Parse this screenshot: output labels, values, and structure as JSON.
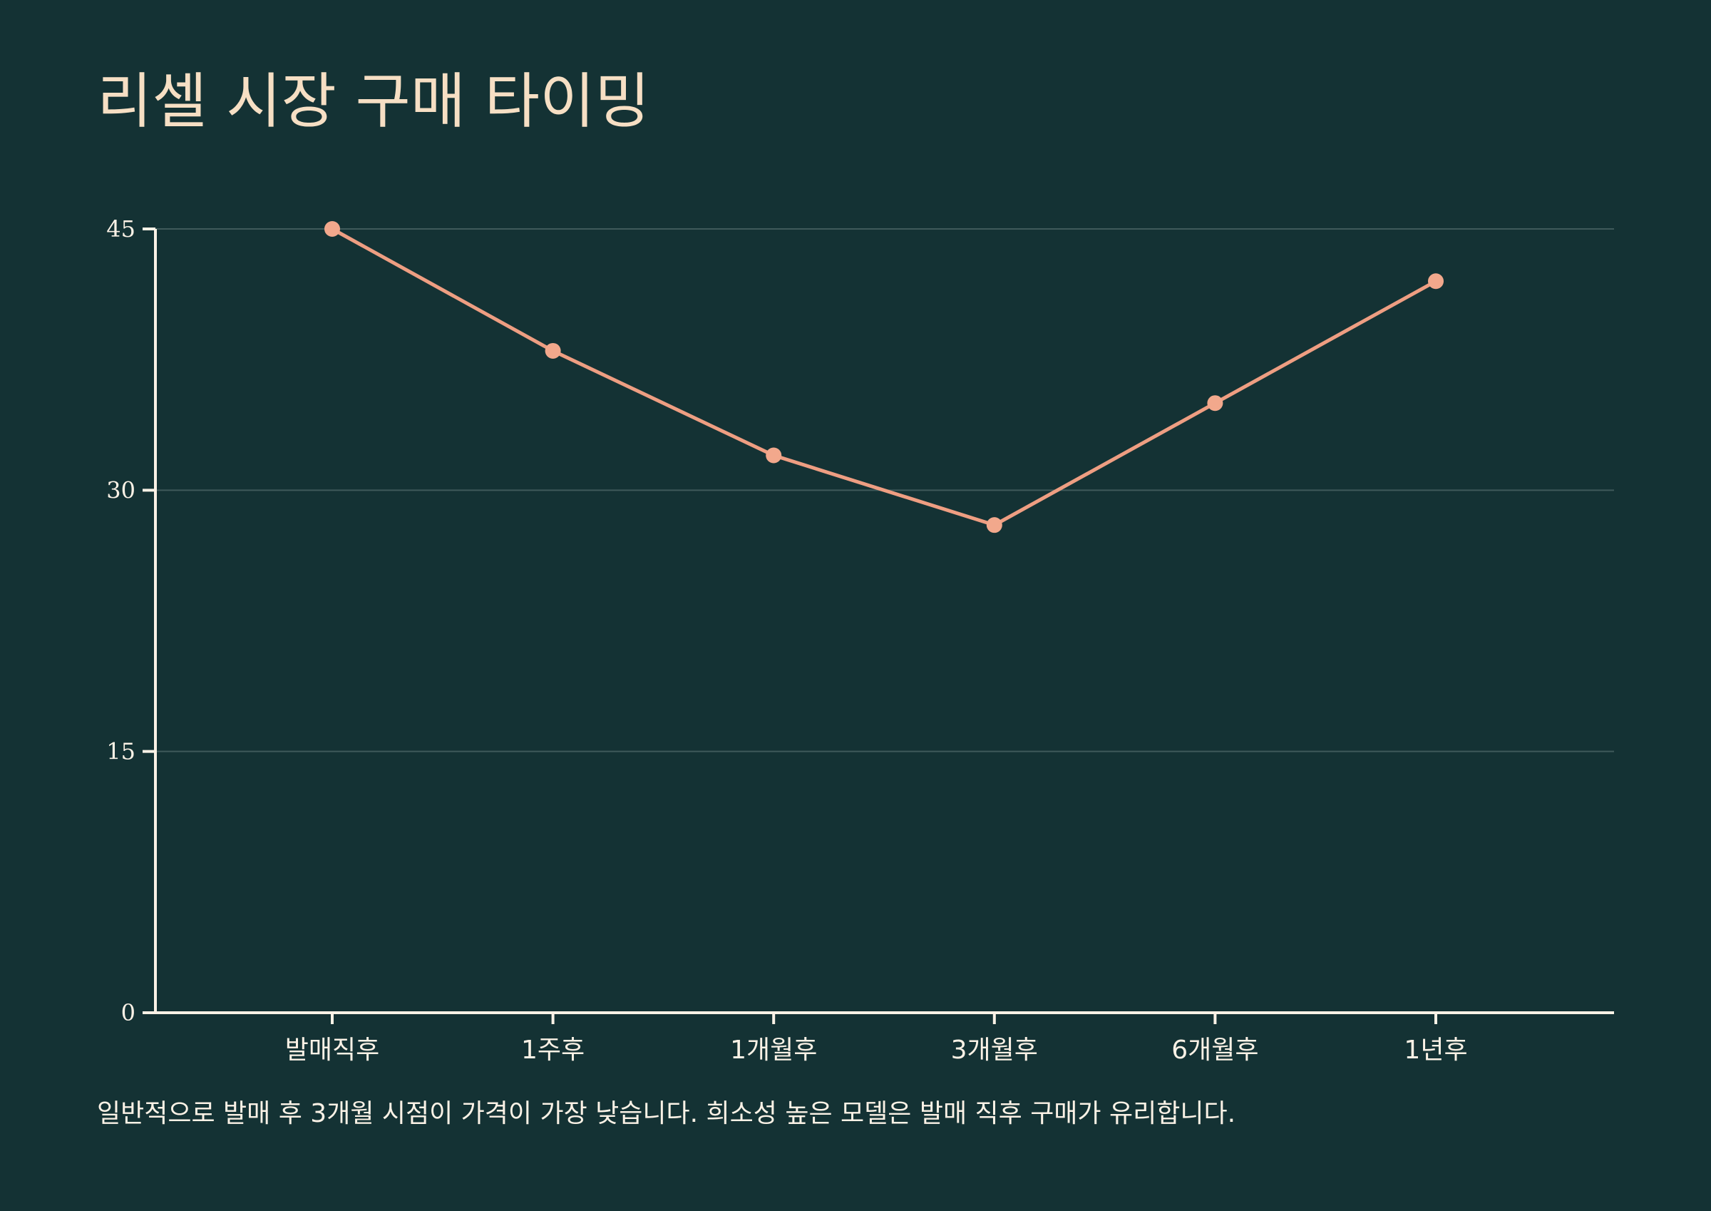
{
  "chart_data": {
    "type": "line",
    "title": "리셀 시장 구매 타이밍",
    "categories": [
      "발매직후",
      "1주후",
      "1개월후",
      "3개월후",
      "6개월후",
      "1년후"
    ],
    "series": [
      {
        "values": [
          45,
          38,
          32,
          28,
          35,
          42
        ]
      }
    ],
    "xlabel": "",
    "ylabel": "",
    "ylim": [
      0,
      45
    ],
    "yticks": [
      0,
      15,
      30,
      45
    ],
    "grid": true,
    "legend": "none",
    "colors": {
      "background": "#143234",
      "line": "#ee9e82",
      "marker": "#f2a88c",
      "grid": "#3f5a5a",
      "axis": "#fbf2e6",
      "title": "#f6dfc4"
    }
  },
  "note": "일반적으로 발매 후 3개월 시점이 가격이 가장 낮습니다. 희소성 높은 모델은 발매 직후 구매가 유리합니다."
}
